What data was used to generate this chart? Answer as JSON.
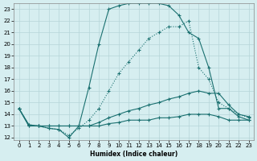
{
  "xlabel": "Humidex (Indice chaleur)",
  "ylabel": "",
  "xlim": [
    -0.5,
    23.5
  ],
  "ylim": [
    11.8,
    23.5
  ],
  "yticks": [
    12,
    13,
    14,
    15,
    16,
    17,
    18,
    19,
    20,
    21,
    22,
    23
  ],
  "xticks": [
    0,
    1,
    2,
    3,
    4,
    5,
    6,
    7,
    8,
    9,
    10,
    11,
    12,
    13,
    14,
    15,
    16,
    17,
    18,
    19,
    20,
    21,
    22,
    23
  ],
  "line_color": "#1a7070",
  "bg_color": "#d6eef0",
  "grid_color": "#b5d5d8",
  "series": [
    {
      "x": [
        0,
        1,
        2,
        3,
        4,
        5,
        6,
        7,
        8,
        9,
        10,
        11,
        12,
        13,
        14,
        15,
        16,
        17,
        18,
        19,
        20,
        21,
        22,
        23
      ],
      "y": [
        14.5,
        13.1,
        13.0,
        12.8,
        12.7,
        12.0,
        13.0,
        16.3,
        20.0,
        23.0,
        23.3,
        23.5,
        23.5,
        23.5,
        23.5,
        23.3,
        22.5,
        21.0,
        20.5,
        18.0,
        14.5,
        14.5,
        13.8,
        13.5
      ]
    },
    {
      "x": [
        0,
        1,
        2,
        3,
        4,
        5,
        6,
        7,
        8,
        9,
        10,
        11,
        12,
        13,
        14,
        15,
        16,
        17,
        18,
        19,
        20,
        21,
        22,
        23
      ],
      "y": [
        14.5,
        13.1,
        13.0,
        12.8,
        12.7,
        12.2,
        12.8,
        13.5,
        14.5,
        16.0,
        17.5,
        18.5,
        19.5,
        20.5,
        21.0,
        21.5,
        21.5,
        22.0,
        18.0,
        17.0,
        15.0,
        14.5,
        14.0,
        13.7
      ]
    },
    {
      "x": [
        0,
        1,
        2,
        3,
        4,
        5,
        6,
        7,
        8,
        9,
        10,
        11,
        12,
        13,
        14,
        15,
        16,
        17,
        18,
        19,
        20,
        21,
        22,
        23
      ],
      "y": [
        14.5,
        13.0,
        13.0,
        13.0,
        13.0,
        13.0,
        13.0,
        13.0,
        13.3,
        13.7,
        14.0,
        14.3,
        14.5,
        14.8,
        15.0,
        15.3,
        15.5,
        15.8,
        16.0,
        15.8,
        15.8,
        14.8,
        14.0,
        13.8
      ]
    },
    {
      "x": [
        0,
        1,
        2,
        3,
        4,
        5,
        6,
        7,
        8,
        9,
        10,
        11,
        12,
        13,
        14,
        15,
        16,
        17,
        18,
        19,
        20,
        21,
        22,
        23
      ],
      "y": [
        14.5,
        13.0,
        13.0,
        13.0,
        13.0,
        13.0,
        13.0,
        13.0,
        13.0,
        13.2,
        13.3,
        13.5,
        13.5,
        13.5,
        13.7,
        13.7,
        13.8,
        14.0,
        14.0,
        14.0,
        13.8,
        13.5,
        13.5,
        13.5
      ]
    }
  ]
}
